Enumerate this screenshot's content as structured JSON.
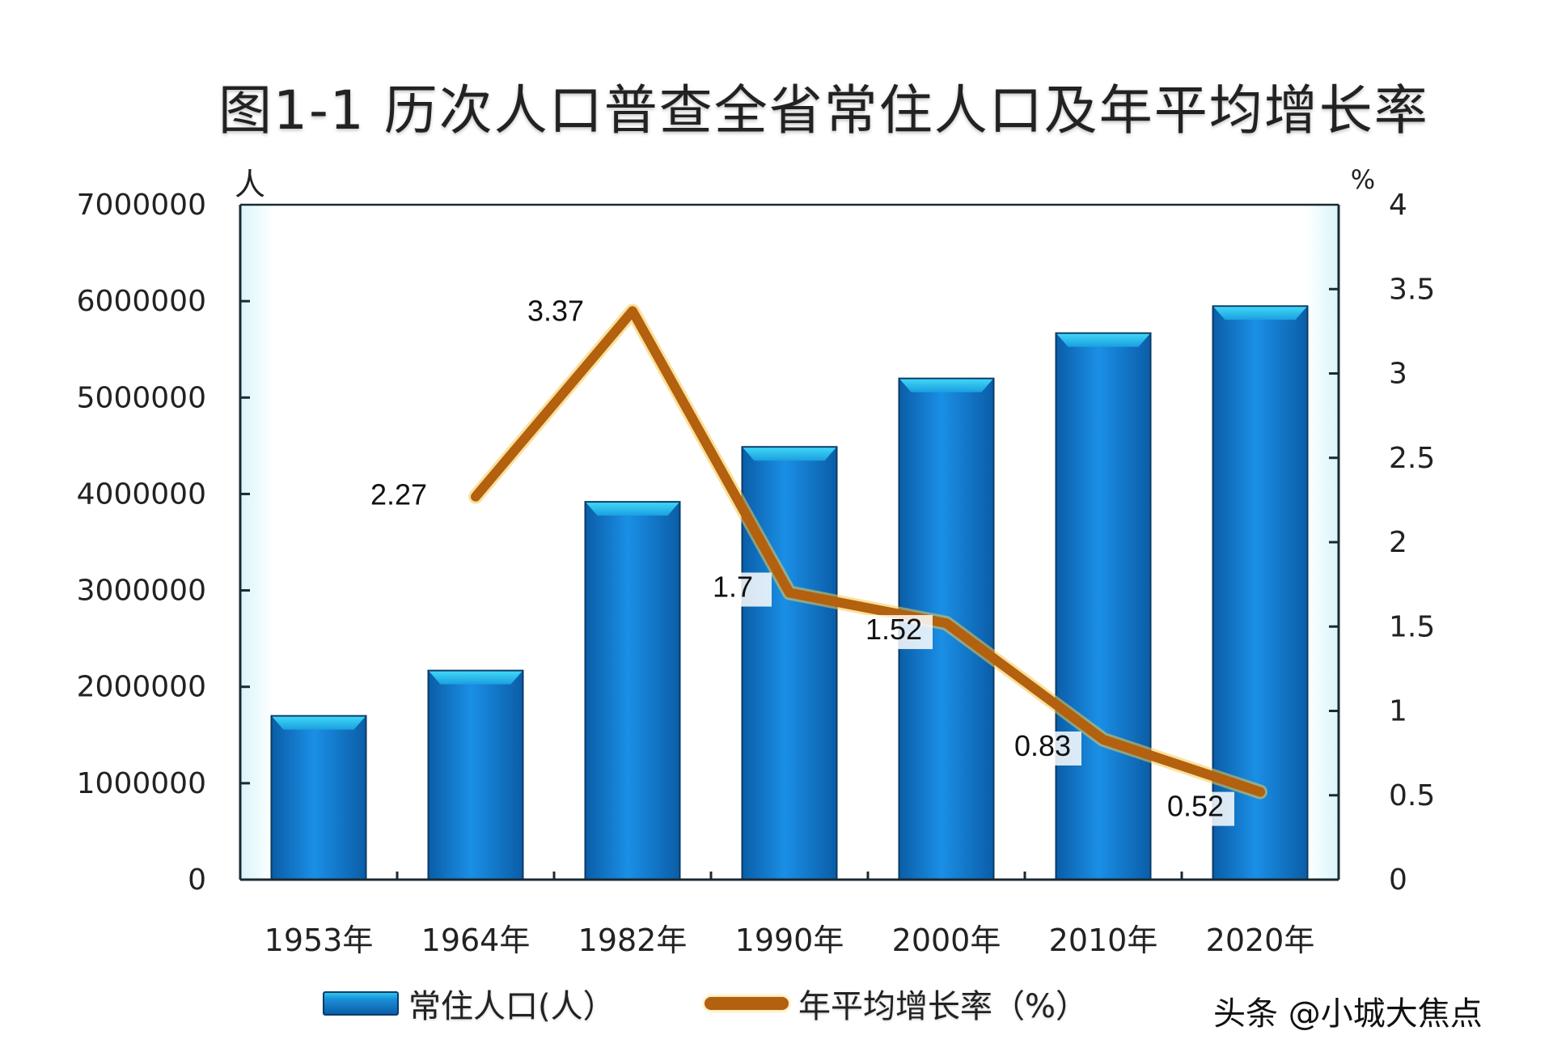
{
  "title": "图1-1  历次人口普查全省常住人口及年平均增长率",
  "watermark": "头条 @小城大焦点",
  "legend": {
    "bar_label": "常住人口(人）",
    "line_label": "年平均增长率（%）"
  },
  "colors": {
    "bar_top": "#29c6f0",
    "bar_mid": "#1a8fd8",
    "bar_bottom": "#0b5ea8",
    "bar_border": "#0a3a66",
    "line": "#b3600f",
    "line_glow": "#f4c84a",
    "axis": "#1a2a33",
    "plot_edge": "#dff6fb"
  },
  "chart_data": {
    "type": "bar+line",
    "title": "图1-1  历次人口普查全省常住人口及年平均增长率",
    "categories": [
      "1953年",
      "1964年",
      "1982年",
      "1990年",
      "2000年",
      "2010年",
      "2020年"
    ],
    "series": [
      {
        "name": "常住人口(人）",
        "type": "bar",
        "axis": "left",
        "values": [
          1690000,
          2160000,
          3910000,
          4480000,
          5190000,
          5660000,
          5940000
        ]
      },
      {
        "name": "年平均增长率（%）",
        "type": "line",
        "axis": "right",
        "values": [
          null,
          2.27,
          3.37,
          1.7,
          1.52,
          0.83,
          0.52
        ],
        "data_labels": [
          "",
          "2.27",
          "3.37",
          "1.7",
          "1.52",
          "0.83",
          "0.52"
        ]
      }
    ],
    "left_axis": {
      "unit_label": "人",
      "ylim": [
        0,
        7000000
      ],
      "ticks": [
        0,
        1000000,
        2000000,
        3000000,
        4000000,
        5000000,
        6000000,
        7000000
      ],
      "tick_labels": [
        "0",
        "1000000",
        "2000000",
        "3000000",
        "4000000",
        "5000000",
        "6000000",
        "7000000"
      ]
    },
    "right_axis": {
      "unit_label": "%",
      "ylim": [
        0,
        4
      ],
      "ticks": [
        0,
        0.5,
        1,
        1.5,
        2,
        2.5,
        3,
        3.5,
        4
      ],
      "tick_labels": [
        "0",
        "0.5",
        "1",
        "1.5",
        "2",
        "2.5",
        "3",
        "3.5",
        "4"
      ]
    },
    "xlabel": "",
    "grid": false,
    "legend_position": "bottom"
  }
}
